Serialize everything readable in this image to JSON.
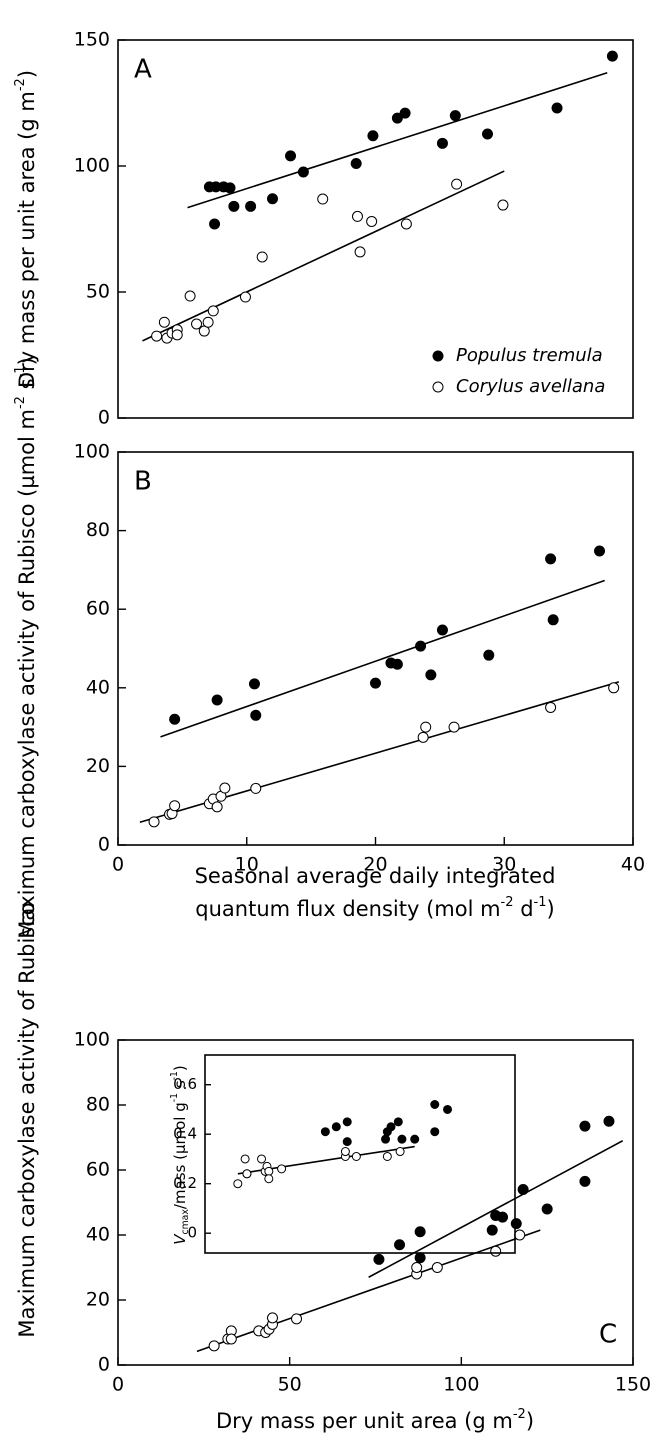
{
  "chart_data": [
    {
      "type": "scatter",
      "panel": "A",
      "xlim": [
        0,
        40
      ],
      "ylim": [
        0,
        150
      ],
      "yticks": [
        0,
        50,
        100,
        150
      ],
      "ylabel": [
        {
          "text": "Dry mass per unit area (g m"
        },
        {
          "text": "-2",
          "style": "sup"
        },
        {
          "text": ")"
        }
      ],
      "legend": "bottom-right",
      "series": [
        {
          "name": "Populus tremula",
          "color": "#000000",
          "fill": "#000000",
          "x": [
            7.1,
            7.6,
            8.2,
            8.7,
            7.5,
            9.0,
            10.3,
            12.0,
            13.4,
            14.4,
            18.5,
            19.8,
            21.7,
            22.3,
            25.2,
            26.2,
            28.7,
            34.1,
            38.4
          ],
          "values": [
            91.7,
            91.7,
            91.7,
            91.3,
            77,
            84,
            84,
            87,
            104,
            97.6,
            101,
            112,
            119,
            121,
            109,
            120,
            112.7,
            123,
            143.6
          ],
          "fit": {
            "x": [
              5.4,
              38
            ],
            "y": [
              83.5,
              137
            ]
          }
        },
        {
          "name": "Corylus avellana",
          "color": "#000000",
          "fill": "#ffffff",
          "x": [
            3,
            3.6,
            3.8,
            4.2,
            4.6,
            4.6,
            5.6,
            6.1,
            6.7,
            7.0,
            7.4,
            9.9,
            11.2,
            15.9,
            18.6,
            18.8,
            19.7,
            22.4,
            26.3,
            29.9
          ],
          "values": [
            32.5,
            38,
            31.7,
            33.7,
            35,
            33,
            48.4,
            37.3,
            34.5,
            38,
            42.5,
            48,
            63.9,
            86.9,
            80,
            65.9,
            78,
            77,
            92.8,
            84.5
          ],
          "fit": {
            "x": [
              1.9,
              30
            ],
            "y": [
              30.6,
              98
            ]
          }
        }
      ]
    },
    {
      "type": "scatter",
      "panel": "B",
      "xlim": [
        0,
        40
      ],
      "ylim": [
        0,
        100
      ],
      "xticks": [
        0,
        10,
        20,
        30,
        40
      ],
      "yticks": [
        0,
        20,
        40,
        60,
        80,
        100
      ],
      "ylabel": [
        {
          "text": "Maximum carboxylase activity of Rubisco (µmol m"
        },
        {
          "text": "-2",
          "style": "sup"
        },
        {
          "text": " s"
        },
        {
          "text": "-1",
          "style": "sup"
        },
        {
          "text": ")"
        }
      ],
      "xlabel": [
        {
          "text": "Seasonal average daily integrated"
        }
      ],
      "xlabel2": [
        {
          "text": "quantum flux density (mol m"
        },
        {
          "text": "-2",
          "style": "sup"
        },
        {
          "text": " d"
        },
        {
          "text": "-1",
          "style": "sup"
        },
        {
          "text": ")"
        }
      ],
      "series": [
        {
          "color": "#000000",
          "fill": "#000000",
          "x": [
            4.4,
            7.7,
            10.6,
            10.7,
            20,
            21.2,
            21.7,
            23.5,
            24.3,
            25.2,
            28.8,
            33.6,
            33.8,
            37.4
          ],
          "values": [
            32,
            36.9,
            41,
            33,
            41.2,
            46.3,
            46,
            50.6,
            43.3,
            54.7,
            48.3,
            72.8,
            57.3,
            74.8
          ],
          "fit": {
            "x": [
              3.3,
              37.8
            ],
            "y": [
              27.5,
              67.3
            ]
          }
        },
        {
          "color": "#000000",
          "fill": "#ffffff",
          "x": [
            2.8,
            4.0,
            4.2,
            4.4,
            7.1,
            7.4,
            7.7,
            8.0,
            8.3,
            10.7,
            23.7,
            23.9,
            26.1,
            33.6,
            38.5
          ],
          "values": [
            5.9,
            7.8,
            8,
            10,
            10.5,
            11.7,
            9.7,
            12.4,
            14.5,
            14.4,
            27.4,
            30,
            30,
            35,
            40
          ],
          "fit": {
            "x": [
              1.7,
              38.9
            ],
            "y": [
              5.8,
              41.5
            ]
          }
        }
      ]
    },
    {
      "type": "scatter",
      "panel": "C",
      "xlim": [
        0,
        150
      ],
      "ylim": [
        0,
        100
      ],
      "xticks": [
        0,
        50,
        100,
        150
      ],
      "yticks": [
        0,
        20,
        40,
        60,
        80,
        100
      ],
      "ylabel": [
        {
          "text": "Maximum carboxylase activity of Rubisco"
        }
      ],
      "xlabel": [
        {
          "text": "Dry mass per unit area (g m"
        },
        {
          "text": "-2",
          "style": "sup"
        },
        {
          "text": ")"
        }
      ],
      "series": [
        {
          "color": "#000000",
          "fill": "#000000",
          "x": [
            76,
            82,
            88,
            88,
            109,
            110,
            112,
            116,
            118,
            125,
            136,
            136,
            143
          ],
          "values": [
            32.5,
            37,
            41,
            33,
            41.5,
            46,
            45.5,
            43.5,
            54,
            48,
            73.5,
            56.5,
            75
          ],
          "fit": {
            "x": [
              73,
              147
            ],
            "y": [
              27,
              69
            ]
          }
        },
        {
          "color": "#000000",
          "fill": "#ffffff",
          "x": [
            28,
            32,
            33,
            33,
            41,
            43,
            44,
            45,
            45,
            52,
            87,
            87,
            93,
            110,
            117
          ],
          "values": [
            5.9,
            8,
            10.5,
            8,
            10.5,
            10,
            11,
            12.5,
            14.5,
            14.2,
            28,
            30,
            30,
            35,
            40
          ],
          "fit": {
            "x": [
              23,
              123
            ],
            "y": [
              4.2,
              41.5
            ]
          }
        }
      ]
    },
    {
      "type": "scatter",
      "xlim": [
        10,
        180
      ],
      "ylim": [
        -0.08,
        0.72
      ],
      "yticks": [
        0,
        0.2,
        0.4,
        0.6
      ],
      "ylabel": [
        {
          "text": "V",
          "style": "italic"
        },
        {
          "text": "cmax",
          "style": "sub"
        },
        {
          "text": "/mass (µmol g"
        },
        {
          "text": "-1",
          "style": "sup"
        },
        {
          "text": " s"
        },
        {
          "text": "-1",
          "style": "sup"
        },
        {
          "text": ")"
        }
      ],
      "series": [
        {
          "color": "#000000",
          "fill": "#000000",
          "x": [
            76,
            82,
            88,
            88,
            109,
            110,
            112,
            116,
            118,
            125,
            136,
            136,
            143
          ],
          "values": [
            0.41,
            0.43,
            0.45,
            0.37,
            0.38,
            0.41,
            0.43,
            0.45,
            0.38,
            0.38,
            0.52,
            0.41,
            0.5
          ]
        },
        {
          "color": "#000000",
          "fill": "#ffffff",
          "x": [
            28,
            32,
            33,
            33,
            41,
            43,
            44,
            45,
            45,
            52,
            87,
            87,
            93,
            110,
            117
          ],
          "values": [
            0.2,
            0.3,
            0.24,
            0.24,
            0.3,
            0.25,
            0.27,
            0.25,
            0.22,
            0.26,
            0.31,
            0.33,
            0.31,
            0.31,
            0.33
          ],
          "fit": {
            "x": [
              28,
              125
            ],
            "y": [
              0.24,
              0.35
            ]
          }
        }
      ]
    }
  ]
}
